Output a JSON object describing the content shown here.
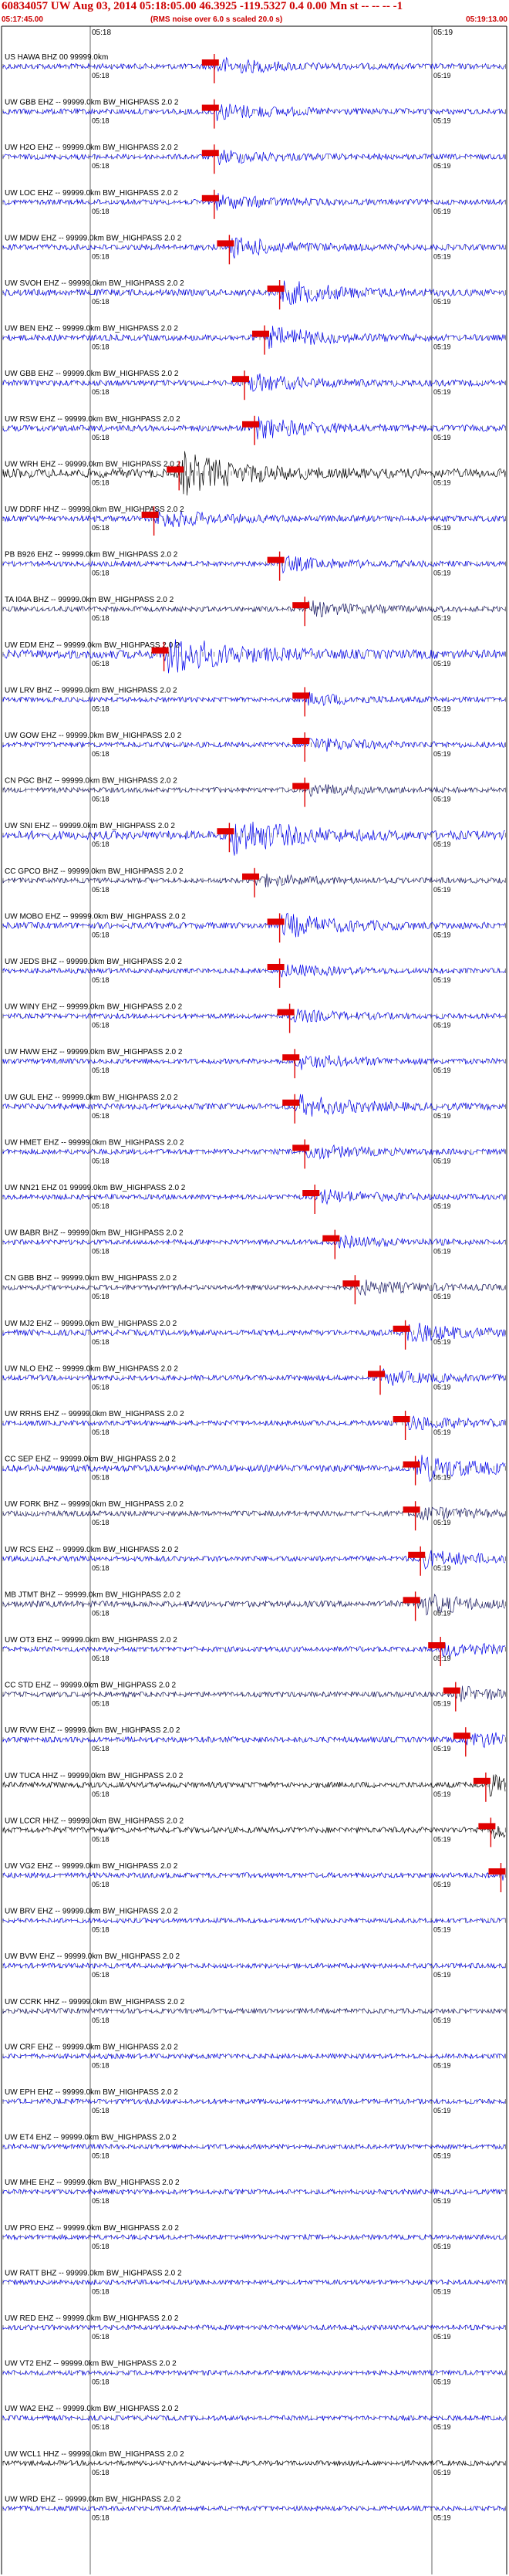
{
  "header": {
    "title": "60834057 UW Aug 03, 2014 05:18:05.00   46.3925  -119.5327  0.4 0.00 Mn st -- -- -- -1",
    "time_start": "05:17:45.00",
    "subtitle": "(RMS noise over 6.0 s scaled 20.0 s)",
    "time_end": "05:19:13.00"
  },
  "top_tick_labels": {
    "left": "05:18",
    "right": "05:19"
  },
  "tick_labels": {
    "left": "05:18",
    "right": "05:19"
  },
  "colors": {
    "title": "#cc0000",
    "marker": "#e00000",
    "trace_blue": "#0000ee",
    "trace_black": "#000000",
    "trace_navy": "#1a1a66",
    "text": "#000000"
  },
  "traces": [
    {
      "label": "US HAWA BHZ 00 99999.0km",
      "color": "blue",
      "amp": 0.35,
      "burst": 0.42
    },
    {
      "label": "UW GBB EHZ -- 99999.0km BW_HIGHPASS 2.0 2",
      "color": "blue",
      "amp": 0.35,
      "burst": 0.42
    },
    {
      "label": "UW H2O EHZ -- 99999.0km BW_HIGHPASS 2.0 2",
      "color": "blue",
      "amp": 0.3,
      "burst": 0.42
    },
    {
      "label": "UW LOC EHZ -- 99999.0km BW_HIGHPASS 2.0 2",
      "color": "blue",
      "amp": 0.3,
      "burst": 0.42
    },
    {
      "label": "UW MDW EHZ -- 99999.0km BW_HIGHPASS 2.0 2",
      "color": "blue",
      "amp": 0.4,
      "burst": 0.45
    },
    {
      "label": "UW SVOH EHZ -- 99999.0km BW_HIGHPASS 2.0 2",
      "color": "blue",
      "amp": 0.5,
      "burst": 0.55
    },
    {
      "label": "UW BEN EHZ -- 99999.0km BW_HIGHPASS 2.0 2",
      "color": "blue",
      "amp": 0.45,
      "burst": 0.52
    },
    {
      "label": "UW GBB EHZ -- 99999.0km BW_HIGHPASS 2.0 2",
      "color": "blue",
      "amp": 0.4,
      "burst": 0.48
    },
    {
      "label": "UW RSW EHZ -- 99999.0km BW_HIGHPASS 2.0 2",
      "color": "blue",
      "amp": 0.45,
      "burst": 0.5
    },
    {
      "label": "UW WRH EHZ -- 99999.0km BW_HIGHPASS 2.0 2",
      "color": "black",
      "amp": 0.9,
      "burst": 0.35
    },
    {
      "label": "UW DDRF HHZ -- 99999.0km BW_HIGHPASS 2.0 2",
      "color": "blue",
      "amp": 0.4,
      "burst": 0.3
    },
    {
      "label": "PB B926 EHZ -- 99999.0km BW_HIGHPASS 2.0 2",
      "color": "blue",
      "amp": 0.3,
      "burst": 0.55
    },
    {
      "label": "TA I04A BHZ -- 99999.0km BW_HIGHPASS 2.0 2",
      "color": "navy",
      "amp": 0.3,
      "burst": 0.6
    },
    {
      "label": "UW EDM EHZ -- 99999.0km BW_HIGHPASS 2.0 2",
      "color": "blue",
      "amp": 0.9,
      "burst": 0.32
    },
    {
      "label": "UW LRV BHZ -- 99999.0km BW_HIGHPASS 2.0 2",
      "color": "blue",
      "amp": 0.25,
      "burst": 0.6
    },
    {
      "label": "UW GOW EHZ -- 99999.0km BW_HIGHPASS 2.0 2",
      "color": "blue",
      "amp": 0.3,
      "burst": 0.6
    },
    {
      "label": "CN PGC BHZ -- 99999.0km BW_HIGHPASS 2.0 2",
      "color": "navy",
      "amp": 0.25,
      "burst": 0.6
    },
    {
      "label": "UW SNI EHZ -- 99999.0km BW_HIGHPASS 2.0 2",
      "color": "blue",
      "amp": 0.85,
      "burst": 0.45
    },
    {
      "label": "CC GPCO BHZ -- 99999.0km BW_HIGHPASS 2.0 2",
      "color": "navy",
      "amp": 0.25,
      "burst": 0.5
    },
    {
      "label": "UW MOBO EHZ -- 99999.0km BW_HIGHPASS 2.0 2",
      "color": "blue",
      "amp": 0.5,
      "burst": 0.55
    },
    {
      "label": "UW JEDS BHZ -- 99999.0km BW_HIGHPASS 2.0 2",
      "color": "blue",
      "amp": 0.25,
      "burst": 0.55
    },
    {
      "label": "UW WINY EHZ -- 99999.0km BW_HIGHPASS 2.0 2",
      "color": "blue",
      "amp": 0.25,
      "burst": 0.57
    },
    {
      "label": "UW HWW EHZ -- 99999.0km BW_HIGHPASS 2.0 2",
      "color": "blue",
      "amp": 0.3,
      "burst": 0.58
    },
    {
      "label": "UW GUL EHZ -- 99999.0km BW_HIGHPASS 2.0 2",
      "color": "blue",
      "amp": 0.45,
      "burst": 0.58
    },
    {
      "label": "UW HMET EHZ -- 99999.0km BW_HIGHPASS 2.0 2",
      "color": "blue",
      "amp": 0.3,
      "burst": 0.6
    },
    {
      "label": "UW NN21 EHZ 01 99999.0km BW_HIGHPASS 2.0 2",
      "color": "blue",
      "amp": 0.3,
      "burst": 0.62
    },
    {
      "label": "UW BABR BHZ -- 99999.0km BW_HIGHPASS 2.0 2",
      "color": "blue",
      "amp": 0.25,
      "burst": 0.66
    },
    {
      "label": "CN GBB BHZ -- 99999.0km BW_HIGHPASS 2.0 2",
      "color": "navy",
      "amp": 0.3,
      "burst": 0.7
    },
    {
      "label": "UW MJ2 EHZ -- 99999.0km BW_HIGHPASS 2.0 2",
      "color": "blue",
      "amp": 0.4,
      "burst": 0.8
    },
    {
      "label": "UW NLO EHZ -- 99999.0km BW_HIGHPASS 2.0 2",
      "color": "blue",
      "amp": 0.3,
      "burst": 0.75
    },
    {
      "label": "UW RRHS EHZ -- 99999.0km BW_HIGHPASS 2.0 2",
      "color": "blue",
      "amp": 0.3,
      "burst": 0.8
    },
    {
      "label": "CC SEP EHZ -- 99999.0km BW_HIGHPASS 2.0 2",
      "color": "blue",
      "amp": 0.55,
      "burst": 0.82
    },
    {
      "label": "UW FORK BHZ -- 99999.0km BW_HIGHPASS 2.0 2",
      "color": "navy",
      "amp": 0.3,
      "burst": 0.82
    },
    {
      "label": "UW RCS EHZ -- 99999.0km BW_HIGHPASS 2.0 2",
      "color": "blue",
      "amp": 0.35,
      "burst": 0.83
    },
    {
      "label": "MB JTMT BHZ -- 99999.0km BW_HIGHPASS 2.0 2",
      "color": "navy",
      "amp": 0.45,
      "burst": 0.82
    },
    {
      "label": "UW OT3 EHZ -- 99999.0km BW_HIGHPASS 2.0 2",
      "color": "blue",
      "amp": 0.3,
      "burst": 0.87
    },
    {
      "label": "CC STD EHZ -- 99999.0km BW_HIGHPASS 2.0 2",
      "color": "navy",
      "amp": 0.3,
      "burst": 0.9
    },
    {
      "label": "UW RVW EHZ -- 99999.0km BW_HIGHPASS 2.0 2",
      "color": "blue",
      "amp": 0.35,
      "burst": 0.92
    },
    {
      "label": "UW TUCA HHZ -- 99999.0km BW_HIGHPASS 2.0 2",
      "color": "black",
      "amp": 0.4,
      "burst": 0.96
    },
    {
      "label": "UW LCCR HHZ -- 99999.0km BW_HIGHPASS 2.0 2",
      "color": "black",
      "amp": 0.4,
      "burst": 0.97
    },
    {
      "label": "UW VG2 EHZ -- 99999.0km BW_HIGHPASS 2.0 2",
      "color": "blue",
      "amp": 0.3,
      "burst": 0.99
    },
    {
      "label": "UW BRV EHZ -- 99999.0km BW_HIGHPASS 2.0 2",
      "color": "blue",
      "amp": 0.25,
      "burst": -1
    },
    {
      "label": "UW BVW EHZ -- 99999.0km BW_HIGHPASS 2.0 2",
      "color": "blue",
      "amp": 0.25,
      "burst": -1
    },
    {
      "label": "UW CCRK HHZ -- 99999.0km BW_HIGHPASS 2.0 2",
      "color": "navy",
      "amp": 0.25,
      "burst": -1
    },
    {
      "label": "UW CRF EHZ -- 99999.0km BW_HIGHPASS 2.0 2",
      "color": "blue",
      "amp": 0.25,
      "burst": -1
    },
    {
      "label": "UW EPH EHZ -- 99999.0km BW_HIGHPASS 2.0 2",
      "color": "blue",
      "amp": 0.25,
      "burst": -1
    },
    {
      "label": "UW ET4 EHZ -- 99999.0km BW_HIGHPASS 2.0 2",
      "color": "blue",
      "amp": 0.25,
      "burst": -1
    },
    {
      "label": "UW MHE EHZ -- 99999.0km BW_HIGHPASS 2.0 2",
      "color": "blue",
      "amp": 0.25,
      "burst": -1
    },
    {
      "label": "UW PRO EHZ -- 99999.0km BW_HIGHPASS 2.0 2",
      "color": "blue",
      "amp": 0.25,
      "burst": -1
    },
    {
      "label": "UW RATT BHZ -- 99999.0km BW_HIGHPASS 2.0 2",
      "color": "blue",
      "amp": 0.25,
      "burst": -1
    },
    {
      "label": "UW RED EHZ -- 99999.0km BW_HIGHPASS 2.0 2",
      "color": "blue",
      "amp": 0.25,
      "burst": -1
    },
    {
      "label": "UW VT2 EHZ -- 99999.0km BW_HIGHPASS 2.0 2",
      "color": "blue",
      "amp": 0.25,
      "burst": -1
    },
    {
      "label": "UW WA2 EHZ -- 99999.0km BW_HIGHPASS 2.0 2",
      "color": "blue",
      "amp": 0.25,
      "burst": -1
    },
    {
      "label": "UW WCL1 HHZ -- 99999.0km BW_HIGHPASS 2.0 2",
      "color": "black",
      "amp": 0.25,
      "burst": -1
    },
    {
      "label": "UW WRD EHZ -- 99999.0km BW_HIGHPASS 2.0 2",
      "color": "blue",
      "amp": 0.25,
      "burst": -1
    }
  ]
}
